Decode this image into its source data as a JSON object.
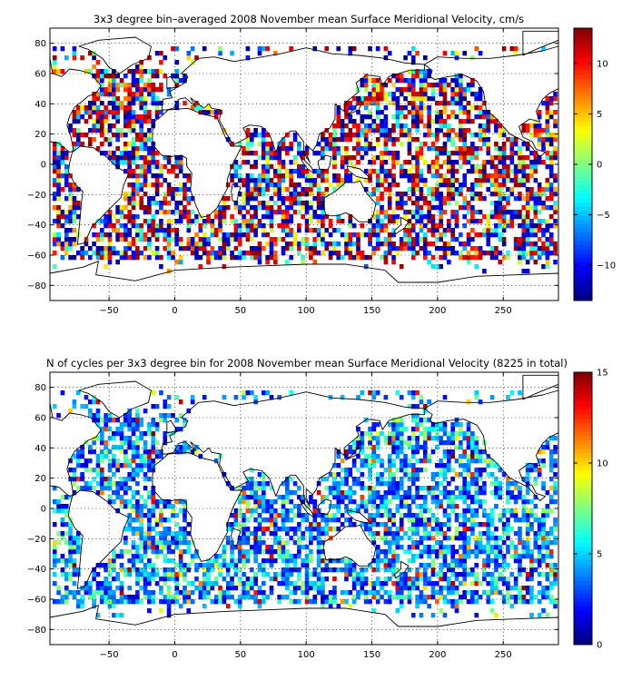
{
  "chart_data": [
    {
      "type": "heatmap",
      "title": "3x3 degree bin–averaged 2008 November mean Surface Meridional Velocity, cm/s",
      "xlabel": "",
      "ylabel": "",
      "xlim": [
        -95,
        292
      ],
      "ylim": [
        -90,
        90
      ],
      "x_ticks": [
        -50,
        0,
        50,
        100,
        150,
        200,
        250
      ],
      "y_ticks": [
        80,
        60,
        40,
        20,
        0,
        -20,
        -40,
        -60,
        -80
      ],
      "colorbar": {
        "range": [
          -13.5,
          13.5
        ],
        "ticks": [
          10,
          5,
          0,
          -5,
          -10
        ],
        "colormap": "jet"
      },
      "grid": true,
      "bin_size_deg": 3,
      "note_values": "dense field of 3x3 degree bins over ocean regions; values approx. range -13 to 13 cm/s"
    },
    {
      "type": "heatmap",
      "title": "N of cycles per 3x3 degree bin for 2008 November mean Surface Meridional Velocity (8225 in total)",
      "xlabel": "",
      "ylabel": "",
      "xlim": [
        -95,
        292
      ],
      "ylim": [
        -90,
        90
      ],
      "x_ticks": [
        -50,
        0,
        50,
        100,
        150,
        200,
        250
      ],
      "y_ticks": [
        80,
        60,
        40,
        20,
        0,
        -20,
        -40,
        -60,
        -80
      ],
      "colorbar": {
        "range": [
          0,
          15
        ],
        "ticks": [
          15,
          10,
          5,
          0
        ],
        "colormap": "jet"
      },
      "grid": true,
      "bin_size_deg": 3,
      "total_cycles": 8225
    }
  ]
}
